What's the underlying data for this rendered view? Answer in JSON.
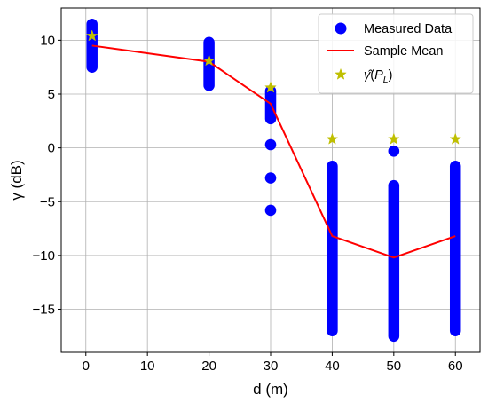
{
  "chart_data": {
    "type": "scatter",
    "xlabel": "d (m)",
    "ylabel": "γ (dB)",
    "xlim": [
      -4,
      64
    ],
    "ylim": [
      -19,
      13
    ],
    "xticks": [
      0,
      10,
      20,
      30,
      40,
      50,
      60
    ],
    "yticks": [
      -15,
      -10,
      -5,
      0,
      5,
      10
    ],
    "ytick_labels": [
      "−15",
      "−10",
      "−5",
      "0",
      "5",
      "10"
    ],
    "grid": true,
    "legend_placement": "top-right",
    "colors": {
      "measured": "#0000ff",
      "mean": "#ff0000",
      "pl": "#bfbf00"
    },
    "series": [
      {
        "name": "Measured Data",
        "kind": "scatter",
        "points": [
          {
            "x": 1,
            "y_min": 7.5,
            "y_max": 11.5
          },
          {
            "x": 20,
            "y_min": 5.8,
            "y_max": 9.8
          },
          {
            "x": 30,
            "y_min": 2.7,
            "y_max": 5.3
          },
          {
            "x": 30,
            "y": 0.3
          },
          {
            "x": 30,
            "y": -2.8
          },
          {
            "x": 30,
            "y": -5.8
          },
          {
            "x": 40,
            "y_min": -17.0,
            "y_max": -1.7
          },
          {
            "x": 50,
            "y": -0.3
          },
          {
            "x": 50,
            "y_min": -17.5,
            "y_max": -3.5
          },
          {
            "x": 60,
            "y_min": -17.0,
            "y_max": -1.7
          }
        ]
      },
      {
        "name": "Sample Mean",
        "kind": "line",
        "x": [
          1,
          20,
          30,
          40,
          50,
          60
        ],
        "y": [
          9.5,
          8.0,
          4.1,
          -8.2,
          -10.2,
          -8.2
        ]
      },
      {
        "name": "γ̂(P_L)",
        "kind": "star",
        "x": [
          1,
          20,
          30,
          40,
          50,
          60
        ],
        "y": [
          10.4,
          8.1,
          5.6,
          0.8,
          0.8,
          0.8
        ]
      }
    ]
  },
  "legend": {
    "measured": "Measured Data",
    "mean": "Sample Mean",
    "pl_hat": "γ̂",
    "pl_arg_open": "(",
    "pl_arg_p": "P",
    "pl_arg_sub": "L",
    "pl_arg_close": ")"
  }
}
